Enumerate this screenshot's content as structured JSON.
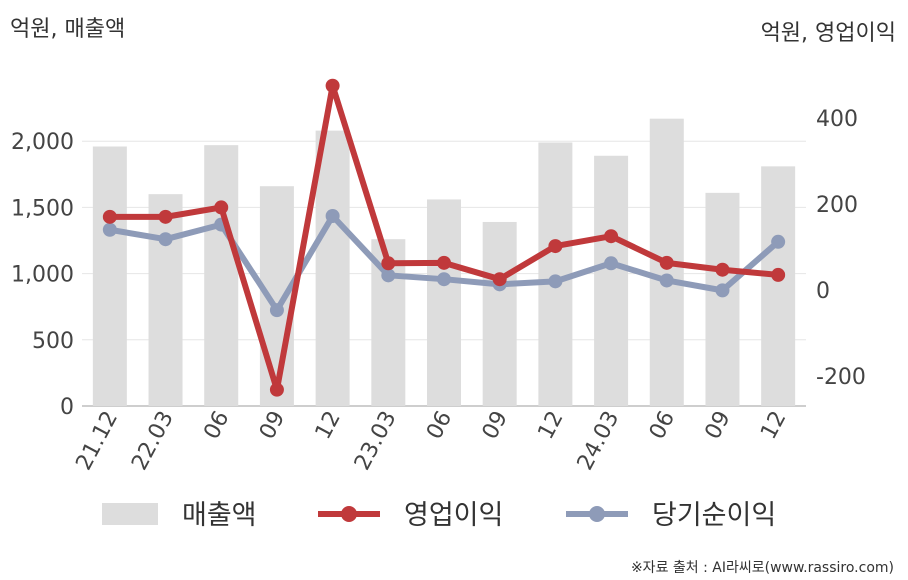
{
  "units": {
    "left": "억원, 매출액",
    "right": "억원, 영업이익"
  },
  "source": "※자료 출처 : AI라씨로(www.rassiro.com)",
  "chart_data": {
    "type": "bar+line",
    "categories": [
      "21.12",
      "22.03",
      "06",
      "09",
      "12",
      "23.03",
      "06",
      "09",
      "12",
      "24.03",
      "06",
      "09",
      "12"
    ],
    "left_axis": {
      "ticks": [
        "0",
        "500",
        "1,000",
        "1,500",
        "2,000"
      ],
      "tick_values": [
        0,
        500,
        1000,
        1500,
        2000
      ],
      "ylim": [
        0,
        2500
      ]
    },
    "right_axis": {
      "ticks": [
        "-200",
        "0",
        "200",
        "400"
      ],
      "tick_values": [
        -200,
        0,
        200,
        400
      ],
      "ylim": [
        -270,
        500
      ]
    },
    "series": [
      {
        "name": "매출액",
        "kind": "bar",
        "axis": "left",
        "color": "#dddddd",
        "values": [
          1960,
          1600,
          1970,
          1660,
          2080,
          1260,
          1560,
          1390,
          1990,
          1890,
          2170,
          1610,
          1810
        ]
      },
      {
        "name": "영업이익",
        "kind": "line",
        "axis": "right",
        "color": "#c0393b",
        "values": [
          170,
          170,
          192,
          -232,
          475,
          62,
          63,
          25,
          102,
          125,
          63,
          47,
          35
        ]
      },
      {
        "name": "당기순이익",
        "kind": "line",
        "axis": "right",
        "color": "#8e9bb8",
        "values": [
          140,
          118,
          152,
          -47,
          172,
          34,
          25,
          13,
          20,
          62,
          22,
          -1,
          112
        ]
      }
    ],
    "grid": "horizontal",
    "legend_position": "bottom"
  }
}
